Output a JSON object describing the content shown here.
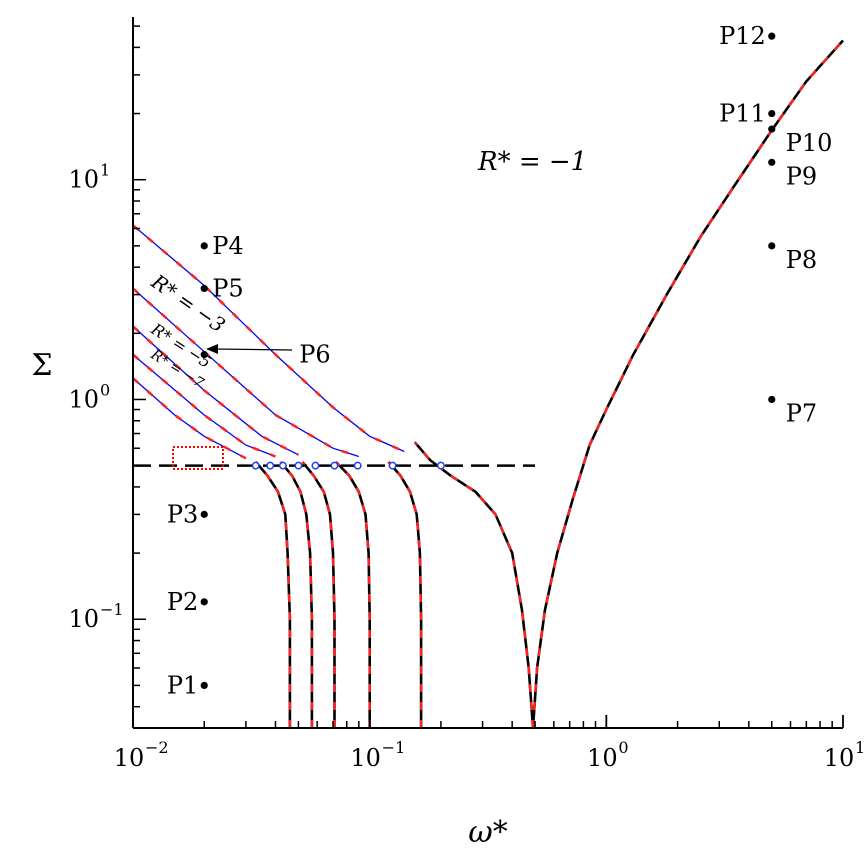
{
  "chart_data": {
    "type": "line",
    "xscale": "log",
    "yscale": "log",
    "xlim": [
      0.01,
      10
    ],
    "ylim": [
      0.032,
      55
    ],
    "xlabel": "ω*",
    "ylabel": "Σ",
    "xticks": [
      {
        "base": "10",
        "exp": "−2",
        "value": 0.01
      },
      {
        "base": "10",
        "exp": "−1",
        "value": 0.1
      },
      {
        "base": "10",
        "exp": "0",
        "value": 1
      },
      {
        "base": "10",
        "exp": "1",
        "value": 10
      }
    ],
    "yticks": [
      {
        "base": "10",
        "exp": "−1",
        "value": 0.1
      },
      {
        "base": "10",
        "exp": "0",
        "value": 1
      },
      {
        "base": "10",
        "exp": "1",
        "value": 10
      }
    ],
    "annotations": {
      "r_main": {
        "text": "R* = −1",
        "x": 0.35,
        "y": 7.5
      },
      "r_3": {
        "text": "R* = −3"
      },
      "r_5": {
        "text": "R* = −5"
      },
      "r_7": {
        "text": "R* = −7"
      }
    },
    "points": [
      {
        "label": "P1",
        "x": 0.02,
        "y": 0.05
      },
      {
        "label": "P2",
        "x": 0.02,
        "y": 0.12
      },
      {
        "label": "P3",
        "x": 0.02,
        "y": 0.3
      },
      {
        "label": "P4",
        "x": 0.02,
        "y": 5.0
      },
      {
        "label": "P5",
        "x": 0.02,
        "y": 3.2
      },
      {
        "label": "P6",
        "x": 0.02,
        "y": 1.6
      },
      {
        "label": "P7",
        "x": 5,
        "y": 1.0
      },
      {
        "label": "P8",
        "x": 5,
        "y": 5.0
      },
      {
        "label": "P9",
        "x": 5,
        "y": 12
      },
      {
        "label": "P10",
        "x": 5,
        "y": 17
      },
      {
        "label": "P11",
        "x": 5,
        "y": 20
      },
      {
        "label": "P12",
        "x": 5,
        "y": 45
      }
    ],
    "threshold": {
      "y": 0.5,
      "x_from": 0.01,
      "x_to": 0.5,
      "style": "dashed"
    },
    "marker_points": [
      {
        "x": 0.033,
        "y": 0.5
      },
      {
        "x": 0.038,
        "y": 0.5
      },
      {
        "x": 0.043,
        "y": 0.5
      },
      {
        "x": 0.05,
        "y": 0.5
      },
      {
        "x": 0.059,
        "y": 0.5
      },
      {
        "x": 0.071,
        "y": 0.5
      },
      {
        "x": 0.089,
        "y": 0.5
      },
      {
        "x": 0.125,
        "y": 0.5
      },
      {
        "x": 0.2,
        "y": 0.5
      }
    ],
    "series": [
      {
        "name": "R* = −1",
        "style": "black-solid-red-dashed",
        "x": [
          0.49,
          0.51,
          0.55,
          0.62,
          0.72,
          0.85,
          1.0,
          1.3,
          1.8,
          2.5,
          3.5,
          5,
          7,
          10
        ],
        "y": [
          0.032,
          0.06,
          0.11,
          0.2,
          0.35,
          0.62,
          0.9,
          1.6,
          3.0,
          5.5,
          9.5,
          16.8,
          28,
          43
        ]
      },
      {
        "name": "",
        "style": "black-solid-red-dashed",
        "x": [
          0.49,
          0.47,
          0.44,
          0.4,
          0.34,
          0.28,
          0.22,
          0.18,
          0.155
        ],
        "y": [
          0.032,
          0.06,
          0.11,
          0.2,
          0.3,
          0.38,
          0.45,
          0.53,
          0.64
        ]
      },
      {
        "name": "",
        "style": "blue-thin",
        "x": [
          0.01,
          0.02,
          0.04,
          0.07,
          0.1,
          0.14
        ],
        "y": [
          6.2,
          3.3,
          1.6,
          0.92,
          0.68,
          0.58
        ]
      },
      {
        "name": "",
        "style": "blue-thin",
        "x": [
          0.01,
          0.02,
          0.04,
          0.07,
          0.09
        ],
        "y": [
          3.2,
          1.65,
          0.85,
          0.6,
          0.55
        ]
      },
      {
        "name": "",
        "style": "blue-thin",
        "x": [
          0.01,
          0.02,
          0.035,
          0.05
        ],
        "y": [
          2.15,
          1.1,
          0.68,
          0.56
        ]
      },
      {
        "name": "",
        "style": "blue-thin",
        "x": [
          0.01,
          0.02,
          0.03,
          0.04
        ],
        "y": [
          1.6,
          0.85,
          0.62,
          0.55
        ]
      },
      {
        "name": "",
        "style": "blue-thin",
        "x": [
          0.01,
          0.015,
          0.02,
          0.03
        ],
        "y": [
          1.25,
          0.85,
          0.68,
          0.54
        ]
      },
      {
        "name": "",
        "style": "black-solid-red-dashed",
        "x": [
          0.165,
          0.165,
          0.163,
          0.158,
          0.148,
          0.135,
          0.12
        ],
        "y": [
          0.032,
          0.1,
          0.2,
          0.3,
          0.38,
          0.45,
          0.52
        ]
      },
      {
        "name": "",
        "style": "black-solid-red-dashed",
        "x": [
          0.1,
          0.1,
          0.099,
          0.096,
          0.09,
          0.082,
          0.072
        ],
        "y": [
          0.032,
          0.1,
          0.2,
          0.3,
          0.38,
          0.45,
          0.52
        ]
      },
      {
        "name": "",
        "style": "black-solid-red-dashed",
        "x": [
          0.071,
          0.071,
          0.07,
          0.068,
          0.064,
          0.058,
          0.052
        ],
        "y": [
          0.032,
          0.1,
          0.2,
          0.3,
          0.38,
          0.45,
          0.52
        ]
      },
      {
        "name": "",
        "style": "black-solid-red-dashed",
        "x": [
          0.057,
          0.057,
          0.056,
          0.054,
          0.051,
          0.047,
          0.042
        ],
        "y": [
          0.032,
          0.1,
          0.2,
          0.3,
          0.38,
          0.45,
          0.52
        ]
      },
      {
        "name": "",
        "style": "black-solid-red-dashed",
        "x": [
          0.046,
          0.046,
          0.045,
          0.044,
          0.041,
          0.037,
          0.033
        ],
        "y": [
          0.032,
          0.1,
          0.2,
          0.3,
          0.38,
          0.45,
          0.52
        ]
      }
    ]
  }
}
